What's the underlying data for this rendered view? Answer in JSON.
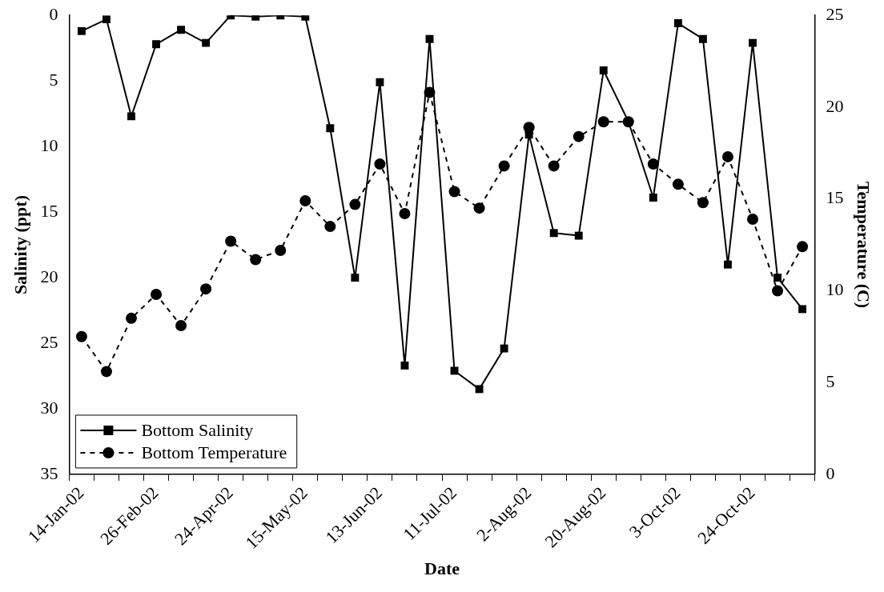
{
  "chart_data": {
    "type": "line",
    "xlabel": "Date",
    "ylabel": "Salinity (ppt)",
    "y2label": "Temperature (C)",
    "categories": [
      "14-Jan-02",
      null,
      null,
      "26-Feb-02",
      null,
      null,
      "24-Apr-02",
      null,
      null,
      "15-May-02",
      null,
      null,
      "13-Jun-02",
      null,
      null,
      "11-Jul-02",
      null,
      null,
      "2-Aug-02",
      null,
      null,
      "20-Aug-02",
      null,
      null,
      "3-Oct-02",
      null,
      null,
      "24-Oct-02",
      null,
      null
    ],
    "series": [
      {
        "name": "Bottom Salinity",
        "color": "#000000",
        "marker": "square",
        "line_style": "solid",
        "values": [
          1.2,
          0.3,
          7.7,
          2.2,
          1.1,
          2.1,
          0,
          0.1,
          0,
          0.1,
          8.6,
          20.0,
          5.1,
          26.7,
          1.8,
          27.1,
          28.5,
          25.4,
          9.1,
          16.6,
          16.8,
          4.2,
          8.1,
          13.9,
          0.6,
          1.8,
          19.0,
          2.1,
          20.0,
          22.4
        ]
      },
      {
        "name": "Bottom Temperature",
        "color": "#000000",
        "marker": "circle",
        "line_style": "dashed",
        "axis": "y2",
        "values": [
          7.5,
          5.6,
          8.5,
          9.8,
          8.1,
          10.1,
          12.7,
          11.7,
          12.2,
          14.9,
          13.5,
          14.7,
          16.9,
          14.2,
          20.8,
          15.4,
          14.5,
          16.8,
          18.9,
          16.8,
          18.4,
          19.2,
          19.2,
          16.9,
          15.8,
          14.8,
          17.3,
          13.9,
          10.0,
          12.4
        ]
      }
    ],
    "ylim": [
      35,
      0
    ],
    "yticks": [
      0,
      5,
      10,
      15,
      20,
      25,
      30,
      35
    ],
    "y2lim": [
      0,
      25
    ],
    "y2ticks": [
      0,
      5,
      10,
      15,
      20,
      25
    ],
    "grid": false,
    "legend": "bottom left"
  }
}
